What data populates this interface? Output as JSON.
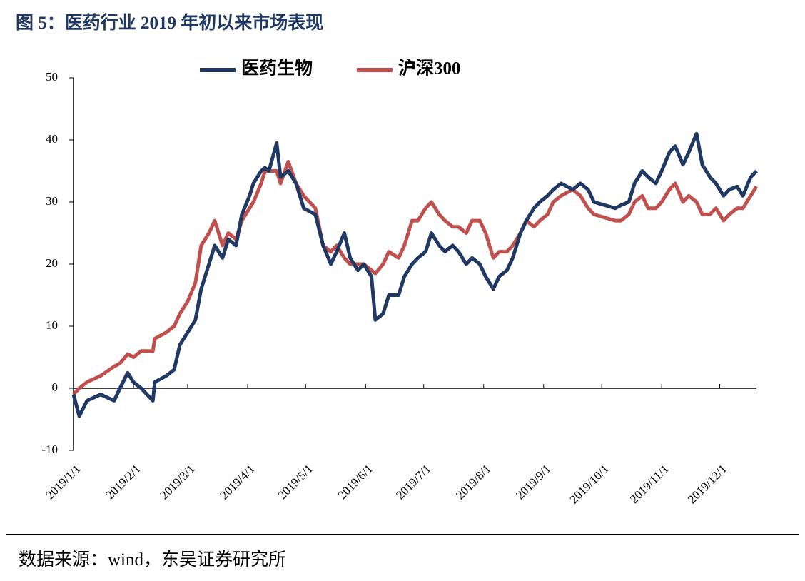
{
  "header": {
    "title": "图 5：医药行业 2019 年初以来市场表现"
  },
  "chart_data": {
    "type": "line",
    "x": [
      "2019/1/1",
      "2019/1/4",
      "2019/1/8",
      "2019/1/15",
      "2019/1/22",
      "2019/1/25",
      "2019/1/29",
      "2019/2/1",
      "2019/2/5",
      "2019/2/11",
      "2019/2/12",
      "2019/2/18",
      "2019/2/22",
      "2019/2/25",
      "2019/3/1",
      "2019/3/5",
      "2019/3/8",
      "2019/3/12",
      "2019/3/15",
      "2019/3/19",
      "2019/3/22",
      "2019/3/26",
      "2019/3/29",
      "2019/4/2",
      "2019/4/4",
      "2019/4/8",
      "2019/4/10",
      "2019/4/12",
      "2019/4/16",
      "2019/4/18",
      "2019/4/22",
      "2019/4/26",
      "2019/4/30",
      "2019/5/6",
      "2019/5/10",
      "2019/5/14",
      "2019/5/17",
      "2019/5/21",
      "2019/5/24",
      "2019/5/28",
      "2019/5/31",
      "2019/6/4",
      "2019/6/6",
      "2019/6/10",
      "2019/6/13",
      "2019/6/18",
      "2019/6/21",
      "2019/6/25",
      "2019/6/28",
      "2019/7/2",
      "2019/7/5",
      "2019/7/9",
      "2019/7/12",
      "2019/7/16",
      "2019/7/19",
      "2019/7/23",
      "2019/7/26",
      "2019/7/30",
      "2019/8/2",
      "2019/8/6",
      "2019/8/9",
      "2019/8/13",
      "2019/8/16",
      "2019/8/20",
      "2019/8/23",
      "2019/8/27",
      "2019/8/30",
      "2019/9/3",
      "2019/9/6",
      "2019/9/10",
      "2019/9/16",
      "2019/9/20",
      "2019/9/24",
      "2019/9/27",
      "2019/10/8",
      "2019/10/11",
      "2019/10/15",
      "2019/10/18",
      "2019/10/22",
      "2019/10/25",
      "2019/10/29",
      "2019/11/1",
      "2019/11/5",
      "2019/11/8",
      "2019/11/12",
      "2019/11/15",
      "2019/11/19",
      "2019/11/22",
      "2019/11/26",
      "2019/11/29",
      "2019/12/3",
      "2019/12/6",
      "2019/12/10",
      "2019/12/13",
      "2019/12/17",
      "2019/12/20"
    ],
    "series": [
      {
        "name": "医药生物",
        "color": "#1f3864",
        "values": [
          -1,
          -4.5,
          -2,
          -1,
          -2,
          0,
          2.5,
          1,
          0,
          -2,
          1,
          2,
          3,
          7,
          9,
          11,
          16,
          20,
          23,
          21,
          24,
          23,
          28,
          31,
          33,
          35,
          35.5,
          35,
          39.5,
          34,
          35,
          33,
          29,
          28,
          23,
          20,
          22,
          25,
          21,
          19,
          20,
          18,
          11,
          12,
          15,
          15,
          18,
          20,
          21,
          22,
          25,
          23,
          22,
          23,
          22,
          20,
          21,
          20,
          18,
          16,
          18,
          19,
          21,
          25,
          27,
          29,
          30,
          31,
          32,
          33,
          32,
          33,
          32,
          30,
          29,
          29.5,
          30,
          33,
          35,
          34,
          33,
          35,
          38,
          39,
          36,
          38,
          41,
          36,
          34,
          33,
          31,
          32,
          32.5,
          31,
          34,
          35
        ]
      },
      {
        "name": "沪深300",
        "color": "#c0504d",
        "values": [
          -1,
          0,
          1,
          2,
          3.5,
          4,
          5.5,
          5,
          6,
          6,
          8,
          9,
          10,
          12,
          14,
          17,
          23,
          25,
          27,
          23,
          25,
          24,
          27,
          29,
          30,
          33,
          35,
          35,
          35,
          33,
          36.5,
          33,
          31,
          29,
          23,
          22,
          23,
          21,
          20,
          20,
          20,
          19,
          18.5,
          20,
          22,
          21,
          23,
          27,
          27,
          29,
          30,
          28,
          27,
          26,
          26,
          25,
          27,
          27,
          25,
          21,
          22,
          22,
          23,
          25,
          27,
          26,
          27,
          28,
          30,
          31,
          32,
          31,
          29,
          28,
          27,
          27,
          28,
          30,
          31,
          29,
          29,
          30,
          32,
          33,
          30,
          31,
          30,
          28,
          28,
          29,
          27,
          28,
          29,
          29,
          31,
          32.5
        ]
      }
    ],
    "xlim": [
      "2019/1/1",
      "2019/12/20"
    ],
    "xticks": [
      "2019/1/1",
      "2019/2/1",
      "2019/3/1",
      "2019/4/1",
      "2019/5/1",
      "2019/6/1",
      "2019/7/1",
      "2019/8/1",
      "2019/9/1",
      "2019/10/1",
      "2019/11/1",
      "2019/12/1"
    ],
    "ylim": [
      -10,
      50
    ],
    "yticks": [
      -10,
      0,
      10,
      20,
      30,
      40,
      50
    ],
    "legend": "top"
  },
  "footer": {
    "source": "数据来源：wind，东吴证券研究所"
  }
}
